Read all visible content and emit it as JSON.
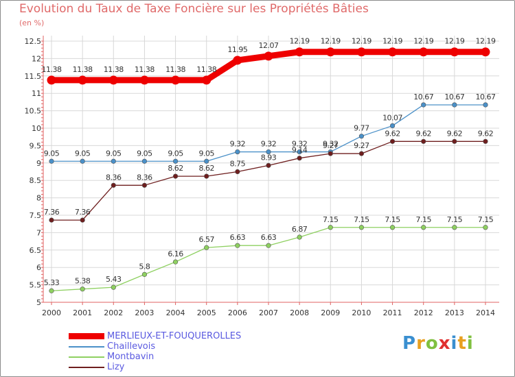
{
  "title": "Evolution du Taux de Taxe Foncière sur les Propriétés Bâties",
  "unit": "(en %)",
  "chart_data": {
    "type": "line",
    "x": [
      "2000",
      "2001",
      "2002",
      "2003",
      "2004",
      "2005",
      "2006",
      "2007",
      "2008",
      "2009",
      "2010",
      "2011",
      "2012",
      "2013",
      "2014"
    ],
    "ylim": [
      5,
      12.5
    ],
    "yticks": [
      "5",
      "5.5",
      "6",
      "6.5",
      "7",
      "7.5",
      "8",
      "8.5",
      "9",
      "9.5",
      "10",
      "10.5",
      "11",
      "11.5",
      "12",
      "12.5"
    ],
    "grid": true,
    "legend_position": "bottom-left",
    "series": [
      {
        "name": "MERLIEUX-ET-FOUQUEROLLES",
        "color": "#ee0000",
        "values": [
          11.38,
          11.38,
          11.38,
          11.38,
          11.38,
          11.38,
          11.95,
          12.07,
          12.19,
          12.19,
          12.19,
          12.19,
          12.19,
          12.19,
          12.19
        ],
        "labels": [
          "11.38",
          "11.38",
          "11.38",
          "11.38",
          "11.38",
          "11.38",
          "11.95",
          "12.07",
          "12.19",
          "12.19",
          "12.19",
          "12.19",
          "12.19",
          "12.19",
          "12.19"
        ]
      },
      {
        "name": "Chaillevois",
        "color": "#4a90c8",
        "values": [
          9.05,
          9.05,
          9.05,
          9.05,
          9.05,
          9.05,
          9.32,
          9.32,
          9.32,
          9.32,
          9.77,
          10.07,
          10.67,
          10.67,
          10.67
        ],
        "labels": [
          "9.05",
          "9.05",
          "9.05",
          "9.05",
          "9.05",
          "9.05",
          "9.32",
          "9.32",
          "9.32",
          "9.32",
          "9.77",
          "10.07",
          "10.67",
          "10.67",
          "10.67"
        ]
      },
      {
        "name": "Montbavin",
        "color": "#8ed060",
        "values": [
          5.33,
          5.38,
          5.43,
          5.8,
          6.16,
          6.57,
          6.63,
          6.63,
          6.87,
          7.15,
          7.15,
          7.15,
          7.15,
          7.15,
          7.15
        ],
        "labels": [
          "5.33",
          "5.38",
          "5.43",
          "5.8",
          "6.16",
          "6.57",
          "6.63",
          "6.63",
          "6.87",
          "7.15",
          "7.15",
          "7.15",
          "7.15",
          "7.15",
          "7.15"
        ]
      },
      {
        "name": "Lizy",
        "color": "#6e1e1e",
        "values": [
          7.36,
          7.36,
          8.36,
          8.36,
          8.62,
          8.62,
          8.75,
          8.93,
          9.14,
          9.27,
          9.27,
          9.62,
          9.62,
          9.62,
          9.62
        ],
        "labels": [
          "7.36",
          "7.36",
          "8.36",
          "8.36",
          "8.62",
          "8.62",
          "8.75",
          "8.93",
          "9.14",
          "9.27",
          "9.27",
          "9.62",
          "9.62",
          "9.62",
          "9.62"
        ]
      }
    ]
  },
  "legend": [
    {
      "label": "MERLIEUX-ET-FOUQUEROLLES",
      "color": "#ee0000"
    },
    {
      "label": "Chaillevois",
      "color": "#4a90c8"
    },
    {
      "label": "Montbavin",
      "color": "#8ed060"
    },
    {
      "label": "Lizy",
      "color": "#6e1e1e"
    }
  ],
  "logo": {
    "text": "Proxiti"
  }
}
